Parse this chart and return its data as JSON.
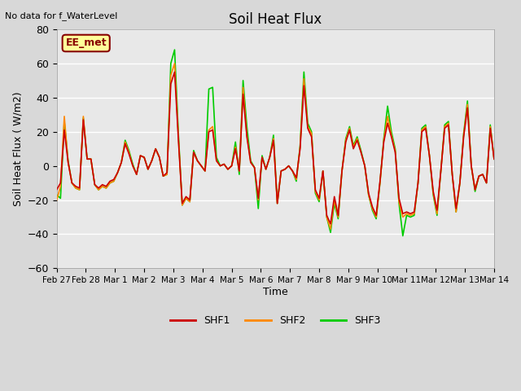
{
  "title": "Soil Heat Flux",
  "top_left_text": "No data for f_WaterLevel",
  "ylabel": "Soil Heat Flux ( W/m2)",
  "xlabel": "Time",
  "ylim": [
    -60,
    80
  ],
  "yticks": [
    -60,
    -40,
    -20,
    0,
    20,
    40,
    60,
    80
  ],
  "bg_color": "#d8d8d8",
  "plot_bg_color": "#e8e8e8",
  "legend_labels": [
    "SHF1",
    "SHF2",
    "SHF3"
  ],
  "legend_colors": [
    "#cc0000",
    "#ff8800",
    "#00cc00"
  ],
  "station_label": "EE_met",
  "station_label_color": "#880000",
  "station_box_color": "#ffff99",
  "x_tick_labels": [
    "Feb 27",
    "Feb 28",
    "Mar 1",
    "Mar 2",
    "Mar 3",
    "Mar 4",
    "Mar 5",
    "Mar 6",
    "Mar 7",
    "Mar 8",
    "Mar 9",
    "Mar 10",
    "Mar 11",
    "Mar 12",
    "Mar 13",
    "Mar 14"
  ],
  "shf1": [
    -14,
    -10,
    21,
    2,
    -10,
    -12,
    -13,
    27,
    4,
    4,
    -11,
    -13,
    -11,
    -12,
    -9,
    -8,
    -4,
    2,
    13,
    7,
    0,
    -5,
    6,
    5,
    -2,
    3,
    10,
    5,
    -6,
    -4,
    48,
    55,
    15,
    -22,
    -18,
    -20,
    8,
    3,
    0,
    -3,
    20,
    21,
    3,
    0,
    1,
    -2,
    0,
    10,
    -3,
    42,
    17,
    2,
    -1,
    -19,
    5,
    -2,
    5,
    15,
    -22,
    -3,
    -2,
    0,
    -3,
    -7,
    10,
    47,
    22,
    17,
    -14,
    -19,
    -3,
    -29,
    -34,
    -18,
    -29,
    -3,
    14,
    21,
    10,
    15,
    8,
    0,
    -16,
    -24,
    -29,
    -9,
    14,
    25,
    17,
    8,
    -19,
    -28,
    -27,
    -28,
    -27,
    -10,
    20,
    22,
    6,
    -15,
    -26,
    -3,
    22,
    24,
    -5,
    -25,
    -10,
    17,
    34,
    0,
    -14,
    -6,
    -5,
    -10,
    22,
    4
  ],
  "shf2": [
    -20,
    -12,
    29,
    2,
    -10,
    -13,
    -14,
    29,
    4,
    4,
    -11,
    -14,
    -12,
    -13,
    -10,
    -9,
    -4,
    2,
    14,
    8,
    0,
    -5,
    6,
    5,
    -2,
    3,
    10,
    5,
    -6,
    -5,
    53,
    60,
    17,
    -23,
    -19,
    -21,
    8,
    3,
    0,
    -3,
    21,
    23,
    3,
    0,
    1,
    -2,
    0,
    11,
    -3,
    46,
    18,
    2,
    -1,
    -20,
    5,
    -2,
    5,
    16,
    -22,
    -3,
    -2,
    0,
    -3,
    -8,
    11,
    51,
    23,
    19,
    -15,
    -20,
    -3,
    -30,
    -37,
    -20,
    -30,
    -3,
    15,
    22,
    11,
    16,
    8,
    0,
    -17,
    -25,
    -30,
    -10,
    15,
    29,
    18,
    9,
    -21,
    -30,
    -28,
    -29,
    -28,
    -10,
    21,
    23,
    6,
    -16,
    -28,
    -3,
    23,
    25,
    -5,
    -27,
    -10,
    18,
    36,
    0,
    -14,
    -6,
    -5,
    -10,
    23,
    4
  ],
  "shf3": [
    -17,
    -19,
    26,
    3,
    -10,
    -13,
    -14,
    28,
    4,
    4,
    -11,
    -14,
    -12,
    -13,
    -10,
    -9,
    -4,
    2,
    15,
    9,
    1,
    -5,
    6,
    5,
    -2,
    3,
    10,
    5,
    -6,
    -5,
    60,
    68,
    19,
    -23,
    -19,
    -21,
    9,
    3,
    0,
    -3,
    45,
    46,
    5,
    0,
    1,
    -2,
    0,
    14,
    -5,
    50,
    23,
    3,
    -1,
    -25,
    6,
    -2,
    5,
    18,
    -22,
    -3,
    -2,
    0,
    -3,
    -9,
    12,
    55,
    25,
    20,
    -16,
    -21,
    -3,
    -30,
    -39,
    -22,
    -31,
    -3,
    16,
    23,
    12,
    17,
    9,
    0,
    -17,
    -26,
    -31,
    -10,
    16,
    35,
    20,
    10,
    -22,
    -41,
    -29,
    -30,
    -29,
    -10,
    22,
    24,
    6,
    -17,
    -29,
    -3,
    24,
    26,
    -5,
    -27,
    -10,
    19,
    38,
    0,
    -15,
    -6,
    -5,
    -10,
    24,
    4
  ]
}
